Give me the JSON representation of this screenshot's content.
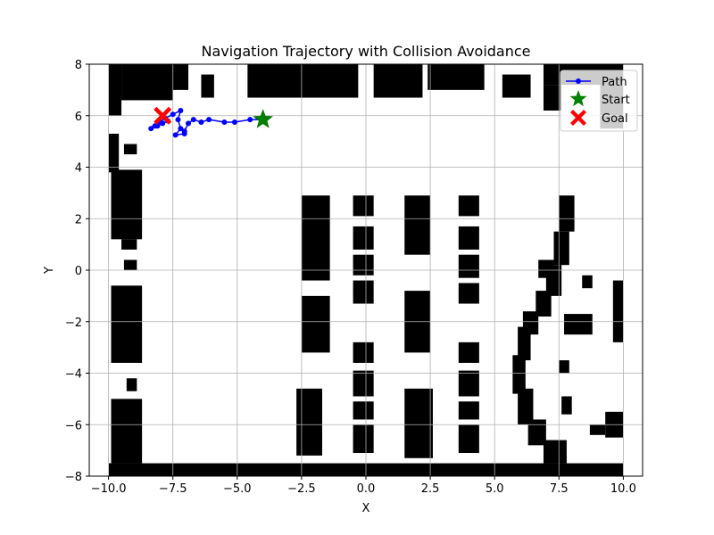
{
  "chart_data": {
    "type": "line",
    "title": "Navigation Trajectory with Collision Avoidance",
    "xlabel": "X",
    "ylabel": "Y",
    "xlim": [
      -10.75,
      10.75
    ],
    "ylim": [
      -8,
      8
    ],
    "xticks": [
      -10.0,
      -7.5,
      -5.0,
      -2.5,
      0.0,
      2.5,
      5.0,
      7.5,
      10.0
    ],
    "xtick_labels": [
      "−10.0",
      "−7.5",
      "−5.0",
      "−2.5",
      "0.0",
      "2.5",
      "5.0",
      "7.5",
      "10.0"
    ],
    "yticks": [
      -8,
      -6,
      -4,
      -2,
      0,
      2,
      4,
      6,
      8
    ],
    "ytick_labels": [
      "−8",
      "−6",
      "−4",
      "−2",
      "0",
      "2",
      "4",
      "6",
      "8"
    ],
    "grid": true,
    "legend_position": "top-right",
    "map_extent": [
      -10,
      10,
      -8,
      8
    ],
    "obstacles": [
      {
        "x0": -10.0,
        "x1": -9.5,
        "y0": 6.0,
        "y1": 8.0
      },
      {
        "x0": -9.5,
        "x1": -7.5,
        "y0": 6.6,
        "y1": 8.0
      },
      {
        "x0": -7.5,
        "x1": -6.9,
        "y0": 7.0,
        "y1": 8.0
      },
      {
        "x0": -6.4,
        "x1": -5.9,
        "y0": 6.7,
        "y1": 7.6
      },
      {
        "x0": -4.6,
        "x1": -0.3,
        "y0": 6.7,
        "y1": 8.0
      },
      {
        "x0": 0.3,
        "x1": 2.2,
        "y0": 6.7,
        "y1": 8.0
      },
      {
        "x0": 2.4,
        "x1": 4.6,
        "y0": 7.0,
        "y1": 8.0
      },
      {
        "x0": 5.3,
        "x1": 6.4,
        "y0": 6.7,
        "y1": 7.6
      },
      {
        "x0": 6.9,
        "x1": 10.0,
        "y0": 7.2,
        "y1": 8.0
      },
      {
        "x0": 6.9,
        "x1": 7.6,
        "y0": 6.2,
        "y1": 7.2
      },
      {
        "x0": 9.1,
        "x1": 10.0,
        "y0": 5.5,
        "y1": 7.2
      },
      {
        "x0": -10.0,
        "x1": -9.6,
        "y0": 3.8,
        "y1": 5.3
      },
      {
        "x0": -9.4,
        "x1": -8.9,
        "y0": 4.5,
        "y1": 4.9
      },
      {
        "x0": -9.9,
        "x1": -8.7,
        "y0": 1.2,
        "y1": 3.9
      },
      {
        "x0": -9.5,
        "x1": -8.9,
        "y0": 0.8,
        "y1": 1.2
      },
      {
        "x0": -9.4,
        "x1": -8.9,
        "y0": 0.0,
        "y1": 0.4
      },
      {
        "x0": -9.9,
        "x1": -8.7,
        "y0": -3.6,
        "y1": -0.6
      },
      {
        "x0": -9.3,
        "x1": -8.9,
        "y0": -4.7,
        "y1": -4.2
      },
      {
        "x0": -9.9,
        "x1": -8.7,
        "y0": -7.5,
        "y1": -5.0
      },
      {
        "x0": -10.0,
        "x1": 10.0,
        "y0": -8.0,
        "y1": -7.5
      },
      {
        "x0": -2.5,
        "x1": -1.4,
        "y0": -0.4,
        "y1": 2.9
      },
      {
        "x0": -2.5,
        "x1": -1.4,
        "y0": -3.2,
        "y1": -1.0
      },
      {
        "x0": -2.7,
        "x1": -1.7,
        "y0": -7.2,
        "y1": -4.6
      },
      {
        "x0": -0.5,
        "x1": 0.3,
        "y0": 2.1,
        "y1": 2.9
      },
      {
        "x0": -0.5,
        "x1": 0.3,
        "y0": 0.8,
        "y1": 1.7
      },
      {
        "x0": -0.5,
        "x1": 0.3,
        "y0": -0.2,
        "y1": 0.6
      },
      {
        "x0": -0.5,
        "x1": 0.3,
        "y0": -1.3,
        "y1": -0.4
      },
      {
        "x0": -0.5,
        "x1": 0.3,
        "y0": -3.6,
        "y1": -2.8
      },
      {
        "x0": -0.5,
        "x1": 0.3,
        "y0": -4.9,
        "y1": -3.9
      },
      {
        "x0": -0.5,
        "x1": 0.3,
        "y0": -5.8,
        "y1": -5.1
      },
      {
        "x0": -0.5,
        "x1": 0.3,
        "y0": -7.1,
        "y1": -6.0
      },
      {
        "x0": 1.5,
        "x1": 2.5,
        "y0": 0.6,
        "y1": 2.9
      },
      {
        "x0": 1.5,
        "x1": 2.5,
        "y0": -3.2,
        "y1": -0.8
      },
      {
        "x0": 1.5,
        "x1": 2.6,
        "y0": -7.3,
        "y1": -4.6
      },
      {
        "x0": 3.6,
        "x1": 4.4,
        "y0": 2.1,
        "y1": 2.9
      },
      {
        "x0": 3.6,
        "x1": 4.4,
        "y0": 0.8,
        "y1": 1.7
      },
      {
        "x0": 3.6,
        "x1": 4.4,
        "y0": -0.3,
        "y1": 0.6
      },
      {
        "x0": 3.6,
        "x1": 4.4,
        "y0": -1.3,
        "y1": -0.5
      },
      {
        "x0": 3.6,
        "x1": 4.4,
        "y0": -3.6,
        "y1": -2.8
      },
      {
        "x0": 3.6,
        "x1": 4.4,
        "y0": -4.9,
        "y1": -3.9
      },
      {
        "x0": 3.6,
        "x1": 4.4,
        "y0": -5.8,
        "y1": -5.1
      },
      {
        "x0": 3.6,
        "x1": 4.4,
        "y0": -7.1,
        "y1": -6.0
      },
      {
        "x0": 7.5,
        "x1": 8.1,
        "y0": 1.5,
        "y1": 2.9
      },
      {
        "x0": 7.3,
        "x1": 7.9,
        "y0": 0.2,
        "y1": 1.5
      },
      {
        "x0": 6.7,
        "x1": 7.3,
        "y0": -0.3,
        "y1": 0.4
      },
      {
        "x0": 7.0,
        "x1": 7.6,
        "y0": -1.0,
        "y1": 0.2
      },
      {
        "x0": 6.6,
        "x1": 7.2,
        "y0": -1.8,
        "y1": -0.8
      },
      {
        "x0": 6.1,
        "x1": 6.7,
        "y0": -2.5,
        "y1": -1.6
      },
      {
        "x0": 5.9,
        "x1": 6.4,
        "y0": -3.5,
        "y1": -2.2
      },
      {
        "x0": 5.7,
        "x1": 6.2,
        "y0": -4.8,
        "y1": -3.3
      },
      {
        "x0": 5.9,
        "x1": 6.5,
        "y0": -6.0,
        "y1": -4.6
      },
      {
        "x0": 6.3,
        "x1": 7.0,
        "y0": -6.8,
        "y1": -5.8
      },
      {
        "x0": 6.9,
        "x1": 7.8,
        "y0": -7.5,
        "y1": -6.6
      },
      {
        "x0": 7.7,
        "x1": 8.8,
        "y0": -2.5,
        "y1": -1.7
      },
      {
        "x0": 8.4,
        "x1": 8.8,
        "y0": -0.7,
        "y1": -0.2
      },
      {
        "x0": 9.6,
        "x1": 10.0,
        "y0": -2.8,
        "y1": -0.4
      },
      {
        "x0": 7.5,
        "x1": 7.9,
        "y0": -4.0,
        "y1": -3.5
      },
      {
        "x0": 7.6,
        "x1": 8.0,
        "y0": -5.6,
        "y1": -4.9
      },
      {
        "x0": 9.3,
        "x1": 10.0,
        "y0": -6.5,
        "y1": -5.5
      },
      {
        "x0": 8.7,
        "x1": 9.3,
        "y0": -6.4,
        "y1": -6.0
      }
    ],
    "series": [
      {
        "name": "Path",
        "color": "#0000ff",
        "points": [
          [
            -4.0,
            5.85
          ],
          [
            -4.5,
            5.85
          ],
          [
            -5.1,
            5.75
          ],
          [
            -5.5,
            5.75
          ],
          [
            -6.1,
            5.85
          ],
          [
            -6.4,
            5.75
          ],
          [
            -6.7,
            5.85
          ],
          [
            -6.9,
            5.7
          ],
          [
            -7.05,
            5.4
          ],
          [
            -7.05,
            5.3
          ],
          [
            -7.4,
            5.25
          ],
          [
            -7.2,
            5.5
          ],
          [
            -7.3,
            5.85
          ],
          [
            -7.2,
            6.2
          ],
          [
            -7.5,
            6.05
          ],
          [
            -7.8,
            5.9
          ],
          [
            -8.1,
            5.7
          ],
          [
            -8.2,
            5.6
          ],
          [
            -8.35,
            5.5
          ],
          [
            -8.1,
            5.6
          ],
          [
            -7.9,
            5.7
          ],
          [
            -7.7,
            5.8
          ]
        ]
      }
    ],
    "start": {
      "name": "Start",
      "x": -4.0,
      "y": 5.85,
      "color": "#008000"
    },
    "goal": {
      "name": "Goal",
      "x": -7.9,
      "y": 6.0,
      "color": "#ff0000"
    }
  }
}
